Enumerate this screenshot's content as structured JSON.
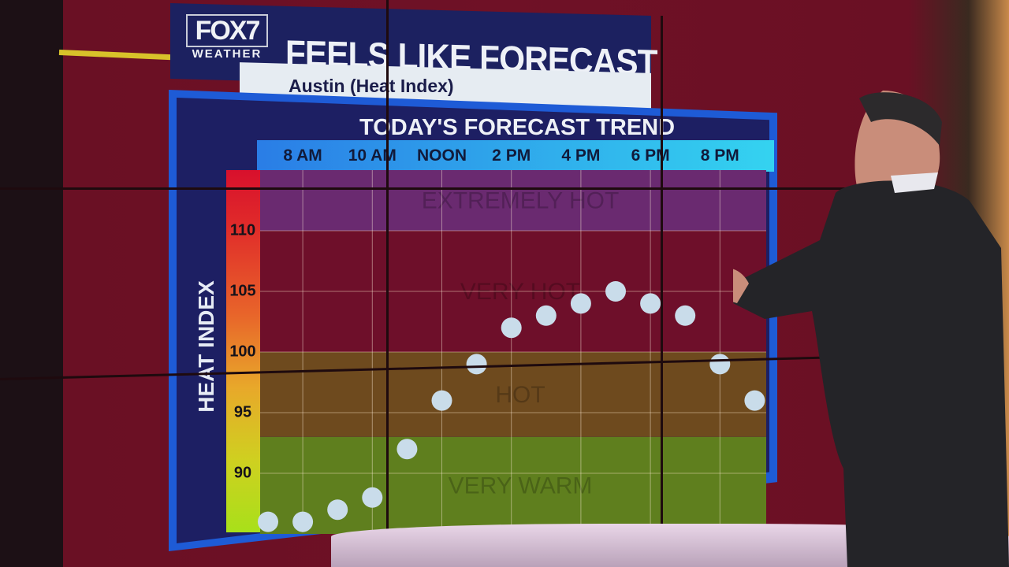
{
  "header": {
    "logo_top": "FOX7",
    "logo_bottom": "WEATHER",
    "title": "FEELS LIKE FORECAST",
    "subtitle": "Austin (Heat Index)"
  },
  "chart_data": {
    "type": "scatter",
    "title": "TODAY'S FORECAST TREND",
    "ylabel": "HEAT INDEX",
    "xlabel": "",
    "x_tick_labels": [
      "8 AM",
      "10 AM",
      "NOON",
      "2 PM",
      "4 PM",
      "6 PM",
      "8 PM"
    ],
    "y_ticks": [
      "110",
      "105",
      "100",
      "95",
      "90"
    ],
    "ylim": [
      85,
      115
    ],
    "x": [
      "7 AM",
      "8 AM",
      "9 AM",
      "10 AM",
      "11 AM",
      "NOON",
      "1 PM",
      "2 PM",
      "3 PM",
      "4 PM",
      "5 PM",
      "6 PM",
      "7 PM",
      "8 PM",
      "9 PM"
    ],
    "values": [
      86,
      86,
      87,
      88,
      92,
      96,
      99,
      102,
      103,
      104,
      105,
      104,
      103,
      99,
      96
    ],
    "bands": [
      {
        "label": "VERY WARM",
        "from": 85,
        "to": 93,
        "color": "#5f7f1e"
      },
      {
        "label": "HOT",
        "from": 93,
        "to": 100,
        "color": "#6e4a1e"
      },
      {
        "label": "VERY HOT",
        "from": 100,
        "to": 110,
        "color": "#6e0f2a"
      },
      {
        "label": "EXTREMELY HOT",
        "from": 110,
        "to": 115,
        "color": "#6a2a70"
      }
    ],
    "grid": true,
    "marker_color": "#c9dcea"
  }
}
